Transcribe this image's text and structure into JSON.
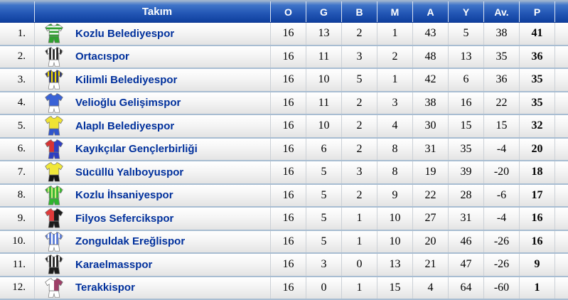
{
  "header": {
    "team_label": "Takım",
    "stat_labels": [
      "O",
      "G",
      "B",
      "M",
      "A",
      "Y",
      "Av.",
      "P"
    ]
  },
  "colors": {
    "header_top": "#8aa7cf",
    "header_bottom": "#0f3f9e",
    "team_link": "#00309c",
    "row_divider": "#a8bdd2"
  },
  "rows": [
    {
      "rank": "1.",
      "team": "Kozlu Belediyespor",
      "kit": {
        "pattern": "hoops",
        "primary": "#2fa12f",
        "secondary": "#ffffff",
        "shorts": "#2fa12f"
      },
      "stats": [
        "16",
        "13",
        "2",
        "1",
        "43",
        "5",
        "38",
        "41"
      ]
    },
    {
      "rank": "2.",
      "team": "Ortacıspor",
      "kit": {
        "pattern": "stripes",
        "primary": "#222222",
        "secondary": "#ffffff",
        "shorts": "#ffffff"
      },
      "stats": [
        "16",
        "11",
        "3",
        "2",
        "48",
        "13",
        "35",
        "36"
      ]
    },
    {
      "rank": "3.",
      "team": "Kilimli Belediyespor",
      "kit": {
        "pattern": "stripes",
        "primary": "#232f78",
        "secondary": "#f2d800",
        "shorts": "#ffffff"
      },
      "stats": [
        "16",
        "10",
        "5",
        "1",
        "42",
        "6",
        "36",
        "35"
      ]
    },
    {
      "rank": "4.",
      "team": "Velioğlu Gelişimspor",
      "kit": {
        "pattern": "plain",
        "primary": "#3a62d6",
        "secondary": "#3a62d6",
        "shorts": "#ffffff"
      },
      "stats": [
        "16",
        "11",
        "2",
        "3",
        "38",
        "16",
        "22",
        "35"
      ]
    },
    {
      "rank": "5.",
      "team": "Alaplı Belediyespor",
      "kit": {
        "pattern": "plain",
        "primary": "#f0e333",
        "secondary": "#f0e333",
        "shorts": "#2f55cc"
      },
      "stats": [
        "16",
        "10",
        "2",
        "4",
        "30",
        "15",
        "15",
        "32"
      ]
    },
    {
      "rank": "6.",
      "team": "Kayıkçılar Gençlerbirliği",
      "kit": {
        "pattern": "halves",
        "primary": "#d63333",
        "secondary": "#2f3fc2",
        "shorts": "#2f3fc2"
      },
      "stats": [
        "16",
        "6",
        "2",
        "8",
        "31",
        "35",
        "-4",
        "20"
      ]
    },
    {
      "rank": "7.",
      "team": "Sücüllü Yalıboyuspor",
      "kit": {
        "pattern": "plain",
        "primary": "#f0e73a",
        "secondary": "#f0e73a",
        "shorts": "#141414"
      },
      "stats": [
        "16",
        "5",
        "3",
        "8",
        "19",
        "39",
        "-20",
        "18"
      ]
    },
    {
      "rank": "8.",
      "team": "Kozlu İhsaniyespor",
      "kit": {
        "pattern": "stripes",
        "primary": "#2fb52f",
        "secondary": "#cfe87d",
        "shorts": "#2fb52f"
      },
      "stats": [
        "16",
        "5",
        "2",
        "9",
        "22",
        "28",
        "-6",
        "17"
      ]
    },
    {
      "rank": "9.",
      "team": "Filyos Sefercikspor",
      "kit": {
        "pattern": "halves",
        "primary": "#e03a3a",
        "secondary": "#1c1c1c",
        "shorts": "#1c1c1c"
      },
      "stats": [
        "16",
        "5",
        "1",
        "10",
        "27",
        "31",
        "-4",
        "16"
      ]
    },
    {
      "rank": "10.",
      "team": "Zonguldak Ereğlispor",
      "kit": {
        "pattern": "stripes",
        "primary": "#5577d5",
        "secondary": "#ffffff",
        "shorts": "#ffffff"
      },
      "stats": [
        "16",
        "5",
        "1",
        "10",
        "20",
        "46",
        "-26",
        "16"
      ]
    },
    {
      "rank": "11.",
      "team": "Karaelmasspor",
      "kit": {
        "pattern": "stripes",
        "primary": "#1c1c1c",
        "secondary": "#ffffff",
        "shorts": "#1c1c1c"
      },
      "stats": [
        "16",
        "3",
        "0",
        "13",
        "21",
        "47",
        "-26",
        "9"
      ]
    },
    {
      "rank": "12.",
      "team": "Terakkispor",
      "kit": {
        "pattern": "halves",
        "primary": "#ffffff",
        "secondary": "#9e3f68",
        "shorts": "#ffffff"
      },
      "stats": [
        "16",
        "0",
        "1",
        "15",
        "4",
        "64",
        "-60",
        "1"
      ]
    }
  ]
}
